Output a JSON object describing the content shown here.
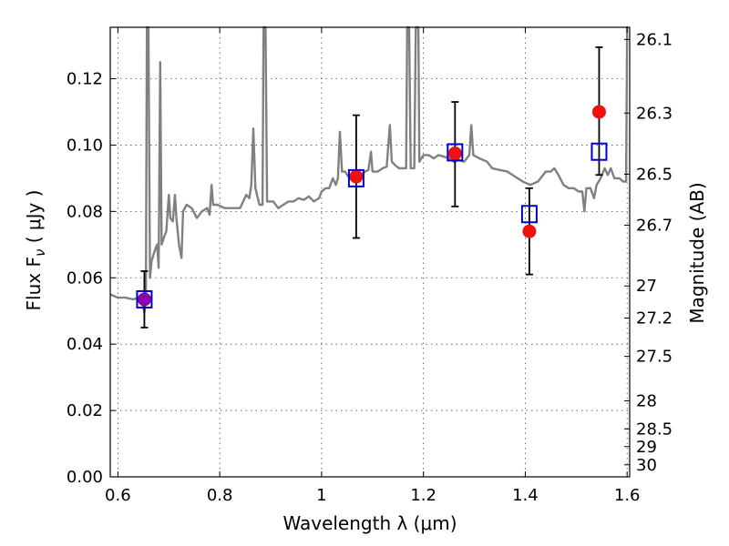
{
  "chart_data": {
    "type": "line",
    "xlabel": "Wavelength  λ (μm)",
    "ylabel": "Flux  F",
    "ylabel_sub": "ν",
    "ylabel_unit": " ( μJy )",
    "y2label": "Magnitude (AB)",
    "xlim": [
      0.585,
      1.605
    ],
    "ylim": [
      0.0,
      0.1355
    ],
    "grid": true,
    "x_ticks": [
      {
        "value": 0.6,
        "label": "0.6"
      },
      {
        "value": 0.8,
        "label": "0.8"
      },
      {
        "value": 1.0,
        "label": "1"
      },
      {
        "value": 1.2,
        "label": "1.2"
      },
      {
        "value": 1.4,
        "label": "1.4"
      },
      {
        "value": 1.6,
        "label": "1.6"
      }
    ],
    "y_ticks": [
      {
        "value": 0.0,
        "label": "0.00"
      },
      {
        "value": 0.02,
        "label": "0.02"
      },
      {
        "value": 0.04,
        "label": "0.04"
      },
      {
        "value": 0.06,
        "label": "0.06"
      },
      {
        "value": 0.08,
        "label": "0.08"
      },
      {
        "value": 0.1,
        "label": "0.10"
      },
      {
        "value": 0.12,
        "label": "0.12"
      }
    ],
    "mag_ticks": [
      {
        "mag": 26.1,
        "label": "26.1"
      },
      {
        "mag": 26.3,
        "label": "26.3"
      },
      {
        "mag": 26.5,
        "label": "26.5"
      },
      {
        "mag": 26.7,
        "label": "26.7"
      },
      {
        "mag": 27.0,
        "label": "27"
      },
      {
        "mag": 27.2,
        "label": "27.2"
      },
      {
        "mag": 27.5,
        "label": "27.5"
      },
      {
        "mag": 28.0,
        "label": "28"
      },
      {
        "mag": 28.5,
        "label": "28.5"
      },
      {
        "mag": 29.0,
        "label": "29"
      },
      {
        "mag": 30.0,
        "label": "30"
      }
    ],
    "series": [
      {
        "kind": "spectrum",
        "color": "#808080",
        "points": [
          [
            0.585,
            0.055
          ],
          [
            0.6,
            0.054
          ],
          [
            0.615,
            0.054
          ],
          [
            0.63,
            0.0535
          ],
          [
            0.64,
            0.054
          ],
          [
            0.648,
            0.0525
          ],
          [
            0.652,
            0.0495
          ],
          [
            0.655,
            0.054
          ],
          [
            0.657,
            0.1355
          ],
          [
            0.66,
            0.1355
          ],
          [
            0.663,
            0.06
          ],
          [
            0.666,
            0.065
          ],
          [
            0.672,
            0.068
          ],
          [
            0.677,
            0.07
          ],
          [
            0.68,
            0.063
          ],
          [
            0.683,
            0.125
          ],
          [
            0.686,
            0.07
          ],
          [
            0.69,
            0.072
          ],
          [
            0.695,
            0.074
          ],
          [
            0.7,
            0.085
          ],
          [
            0.703,
            0.078
          ],
          [
            0.708,
            0.077
          ],
          [
            0.712,
            0.085
          ],
          [
            0.715,
            0.078
          ],
          [
            0.72,
            0.07
          ],
          [
            0.725,
            0.066
          ],
          [
            0.728,
            0.08
          ],
          [
            0.735,
            0.082
          ],
          [
            0.745,
            0.081
          ],
          [
            0.755,
            0.078
          ],
          [
            0.765,
            0.08
          ],
          [
            0.775,
            0.081
          ],
          [
            0.78,
            0.079
          ],
          [
            0.784,
            0.088
          ],
          [
            0.787,
            0.082
          ],
          [
            0.795,
            0.082
          ],
          [
            0.81,
            0.081
          ],
          [
            0.825,
            0.081
          ],
          [
            0.84,
            0.081
          ],
          [
            0.852,
            0.085
          ],
          [
            0.858,
            0.084
          ],
          [
            0.862,
            0.088
          ],
          [
            0.866,
            0.105
          ],
          [
            0.87,
            0.087
          ],
          [
            0.878,
            0.082
          ],
          [
            0.884,
            0.082
          ],
          [
            0.886,
            0.1355
          ],
          [
            0.89,
            0.1355
          ],
          [
            0.893,
            0.083
          ],
          [
            0.905,
            0.083
          ],
          [
            0.915,
            0.081
          ],
          [
            0.925,
            0.082
          ],
          [
            0.935,
            0.083
          ],
          [
            0.945,
            0.083
          ],
          [
            0.955,
            0.084
          ],
          [
            0.965,
            0.0835
          ],
          [
            0.975,
            0.0845
          ],
          [
            0.985,
            0.083
          ],
          [
            0.995,
            0.084
          ],
          [
            1.0,
            0.086
          ],
          [
            1.008,
            0.087
          ],
          [
            1.015,
            0.087
          ],
          [
            1.022,
            0.09
          ],
          [
            1.028,
            0.088
          ],
          [
            1.032,
            0.09
          ],
          [
            1.036,
            0.104
          ],
          [
            1.04,
            0.092
          ],
          [
            1.046,
            0.092
          ],
          [
            1.055,
            0.09
          ],
          [
            1.065,
            0.089
          ],
          [
            1.075,
            0.09
          ],
          [
            1.085,
            0.092
          ],
          [
            1.092,
            0.0925
          ],
          [
            1.097,
            0.098
          ],
          [
            1.1,
            0.092
          ],
          [
            1.11,
            0.092
          ],
          [
            1.12,
            0.093
          ],
          [
            1.128,
            0.0935
          ],
          [
            1.134,
            0.106
          ],
          [
            1.138,
            0.095
          ],
          [
            1.144,
            0.094
          ],
          [
            1.152,
            0.093
          ],
          [
            1.16,
            0.093
          ],
          [
            1.166,
            0.093
          ],
          [
            1.168,
            0.1355
          ],
          [
            1.172,
            0.1355
          ],
          [
            1.175,
            0.093
          ],
          [
            1.182,
            0.093
          ],
          [
            1.185,
            0.1355
          ],
          [
            1.19,
            0.1355
          ],
          [
            1.192,
            0.095
          ],
          [
            1.2,
            0.097
          ],
          [
            1.21,
            0.097
          ],
          [
            1.22,
            0.096
          ],
          [
            1.23,
            0.097
          ],
          [
            1.24,
            0.0965
          ],
          [
            1.25,
            0.096
          ],
          [
            1.26,
            0.095
          ],
          [
            1.27,
            0.0955
          ],
          [
            1.28,
            0.095
          ],
          [
            1.29,
            0.097
          ],
          [
            1.294,
            0.106
          ],
          [
            1.298,
            0.097
          ],
          [
            1.31,
            0.096
          ],
          [
            1.325,
            0.095
          ],
          [
            1.335,
            0.093
          ],
          [
            1.35,
            0.0925
          ],
          [
            1.365,
            0.092
          ],
          [
            1.38,
            0.0905
          ],
          [
            1.395,
            0.089
          ],
          [
            1.41,
            0.088
          ],
          [
            1.425,
            0.089
          ],
          [
            1.44,
            0.092
          ],
          [
            1.45,
            0.092
          ],
          [
            1.457,
            0.093
          ],
          [
            1.465,
            0.091
          ],
          [
            1.475,
            0.088
          ],
          [
            1.485,
            0.087
          ],
          [
            1.495,
            0.087
          ],
          [
            1.505,
            0.086
          ],
          [
            1.512,
            0.086
          ],
          [
            1.516,
            0.08
          ],
          [
            1.52,
            0.087
          ],
          [
            1.528,
            0.087
          ],
          [
            1.535,
            0.084
          ],
          [
            1.54,
            0.088
          ],
          [
            1.548,
            0.09
          ],
          [
            1.556,
            0.093
          ],
          [
            1.562,
            0.091
          ],
          [
            1.568,
            0.093
          ],
          [
            1.575,
            0.09
          ],
          [
            1.585,
            0.09
          ],
          [
            1.592,
            0.089
          ],
          [
            1.598,
            0.089
          ],
          [
            1.6,
            0.1355
          ],
          [
            1.602,
            0.1355
          ]
        ]
      },
      {
        "kind": "errorbar",
        "color": "#000000",
        "points": [
          {
            "x": 0.652,
            "y": 0.0535,
            "lo": 0.045,
            "hi": 0.062
          },
          {
            "x": 1.068,
            "y": 0.0905,
            "lo": 0.072,
            "hi": 0.109
          },
          {
            "x": 1.262,
            "y": 0.0975,
            "lo": 0.0815,
            "hi": 0.113
          },
          {
            "x": 1.408,
            "y": 0.074,
            "lo": 0.061,
            "hi": 0.087
          },
          {
            "x": 1.545,
            "y": 0.11,
            "lo": 0.091,
            "hi": 0.1295
          }
        ]
      },
      {
        "kind": "model-squares",
        "color": "#0000cc",
        "points": [
          [
            0.652,
            0.0535
          ],
          [
            1.068,
            0.09
          ],
          [
            1.262,
            0.0978
          ],
          [
            1.408,
            0.0792
          ],
          [
            1.545,
            0.098
          ]
        ]
      },
      {
        "kind": "observed-points",
        "color": "#ee1111",
        "points": [
          [
            0.652,
            0.0535
          ],
          [
            1.068,
            0.0905
          ],
          [
            1.262,
            0.0975
          ],
          [
            1.408,
            0.074
          ],
          [
            1.545,
            0.11
          ]
        ]
      }
    ],
    "highlight_color": "#8b00b0"
  }
}
